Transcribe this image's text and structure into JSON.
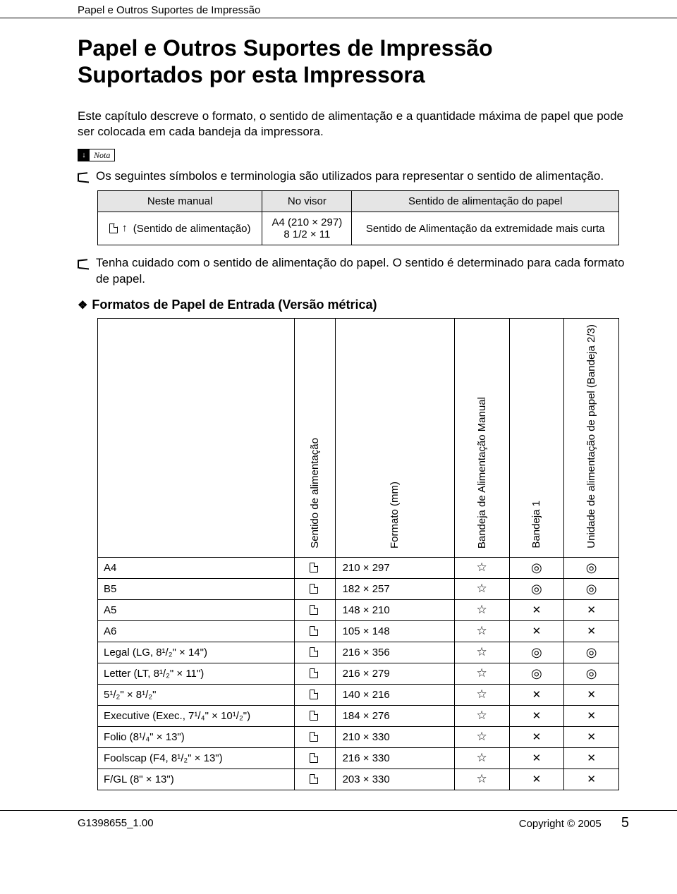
{
  "running_head": "Papel e Outros Suportes de Impressão",
  "title_line1": "Papel e Outros Suportes de Impressão",
  "title_line2": "Suportados por esta Impressora",
  "intro": "Este capítulo descreve o formato, o sentido de alimentação e a quantidade máxima de papel que pode ser colocada em cada bandeja da impressora.",
  "nota_label": "Nota",
  "bullet1": "Os seguintes símbolos e terminologia são utilizados para representar o sentido de alimentação.",
  "small_table": {
    "headers": [
      "Neste manual",
      "No visor",
      "Sentido de alimentação do papel"
    ],
    "row": {
      "c1": "(Sentido de alimentação)",
      "c2a": "A4 (210 × 297)",
      "c2b": "8 1/2 × 11",
      "c3": "Sentido de Alimentação da extremidade mais curta"
    }
  },
  "bullet2": "Tenha cuidado com o sentido de alimentação do papel. O sentido é determinado para cada formato de papel.",
  "section_title": "Formatos de Papel de Entrada (Versão métrica)",
  "big_table": {
    "col_headers": {
      "feed": "Sentido de alimentação",
      "fmt": "Formato (mm)",
      "manual": "Bandeja de Alimentação Manual",
      "tray1": "Bandeja 1",
      "unit": "Unidade de alimentação de papel (Bandeja 2/3)"
    },
    "rows": [
      {
        "name": "A4",
        "fmt": "210 × 297",
        "manual": "star",
        "tray1": "dot",
        "unit": "dot"
      },
      {
        "name": "B5",
        "fmt": "182 × 257",
        "manual": "star",
        "tray1": "dot",
        "unit": "dot"
      },
      {
        "name": "A5",
        "fmt": "148 × 210",
        "manual": "star",
        "tray1": "cross",
        "unit": "cross"
      },
      {
        "name": "A6",
        "fmt": "105 × 148",
        "manual": "star",
        "tray1": "cross",
        "unit": "cross"
      },
      {
        "name": "Legal (LG, 8¹/₂\" × 14\")",
        "fmt": "216 × 356",
        "manual": "star",
        "tray1": "dot",
        "unit": "dot"
      },
      {
        "name": "Letter (LT, 8¹/₂\" × 11\")",
        "fmt": "216 × 279",
        "manual": "star",
        "tray1": "dot",
        "unit": "dot"
      },
      {
        "name": "5¹/₂\" × 8¹/₂\"",
        "fmt": "140 × 216",
        "manual": "star",
        "tray1": "cross",
        "unit": "cross"
      },
      {
        "name": "Executive (Exec., 7¹/₄\" × 10¹/₂\")",
        "fmt": "184 × 276",
        "manual": "star",
        "tray1": "cross",
        "unit": "cross"
      },
      {
        "name": "Folio (8¹/₄\" × 13\")",
        "fmt": "210 × 330",
        "manual": "star",
        "tray1": "cross",
        "unit": "cross"
      },
      {
        "name": "Foolscap (F4, 8¹/₂\" × 13\")",
        "fmt": "216 × 330",
        "manual": "star",
        "tray1": "cross",
        "unit": "cross"
      },
      {
        "name": "F/GL (8\" × 13\")",
        "fmt": "203 × 330",
        "manual": "star",
        "tray1": "cross",
        "unit": "cross"
      }
    ]
  },
  "symbols": {
    "star": "☆",
    "dot": "◎",
    "cross": "✕"
  },
  "footer": {
    "left": "G1398655_1.00",
    "center": "Copyright © 2005",
    "page": "5"
  }
}
